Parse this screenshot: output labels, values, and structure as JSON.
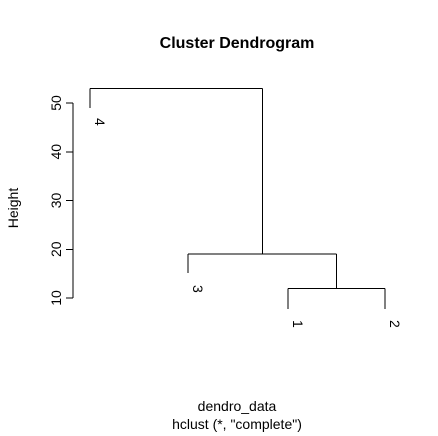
{
  "chart_data": {
    "type": "dendrogram",
    "title": "Cluster Dendrogram",
    "xlabel": "dendro_data",
    "sub": "hclust (*, \"complete\")",
    "ylabel": "Height",
    "yticks": [
      10,
      20,
      30,
      40,
      50
    ],
    "leaves": [
      "4",
      "3",
      "1",
      "2"
    ],
    "merges": [
      {
        "left": "1",
        "right": "2",
        "height": 12
      },
      {
        "left": "3",
        "right": "1-2",
        "height": 19
      },
      {
        "left": "4",
        "right": "3-1-2",
        "height": 53
      }
    ]
  }
}
